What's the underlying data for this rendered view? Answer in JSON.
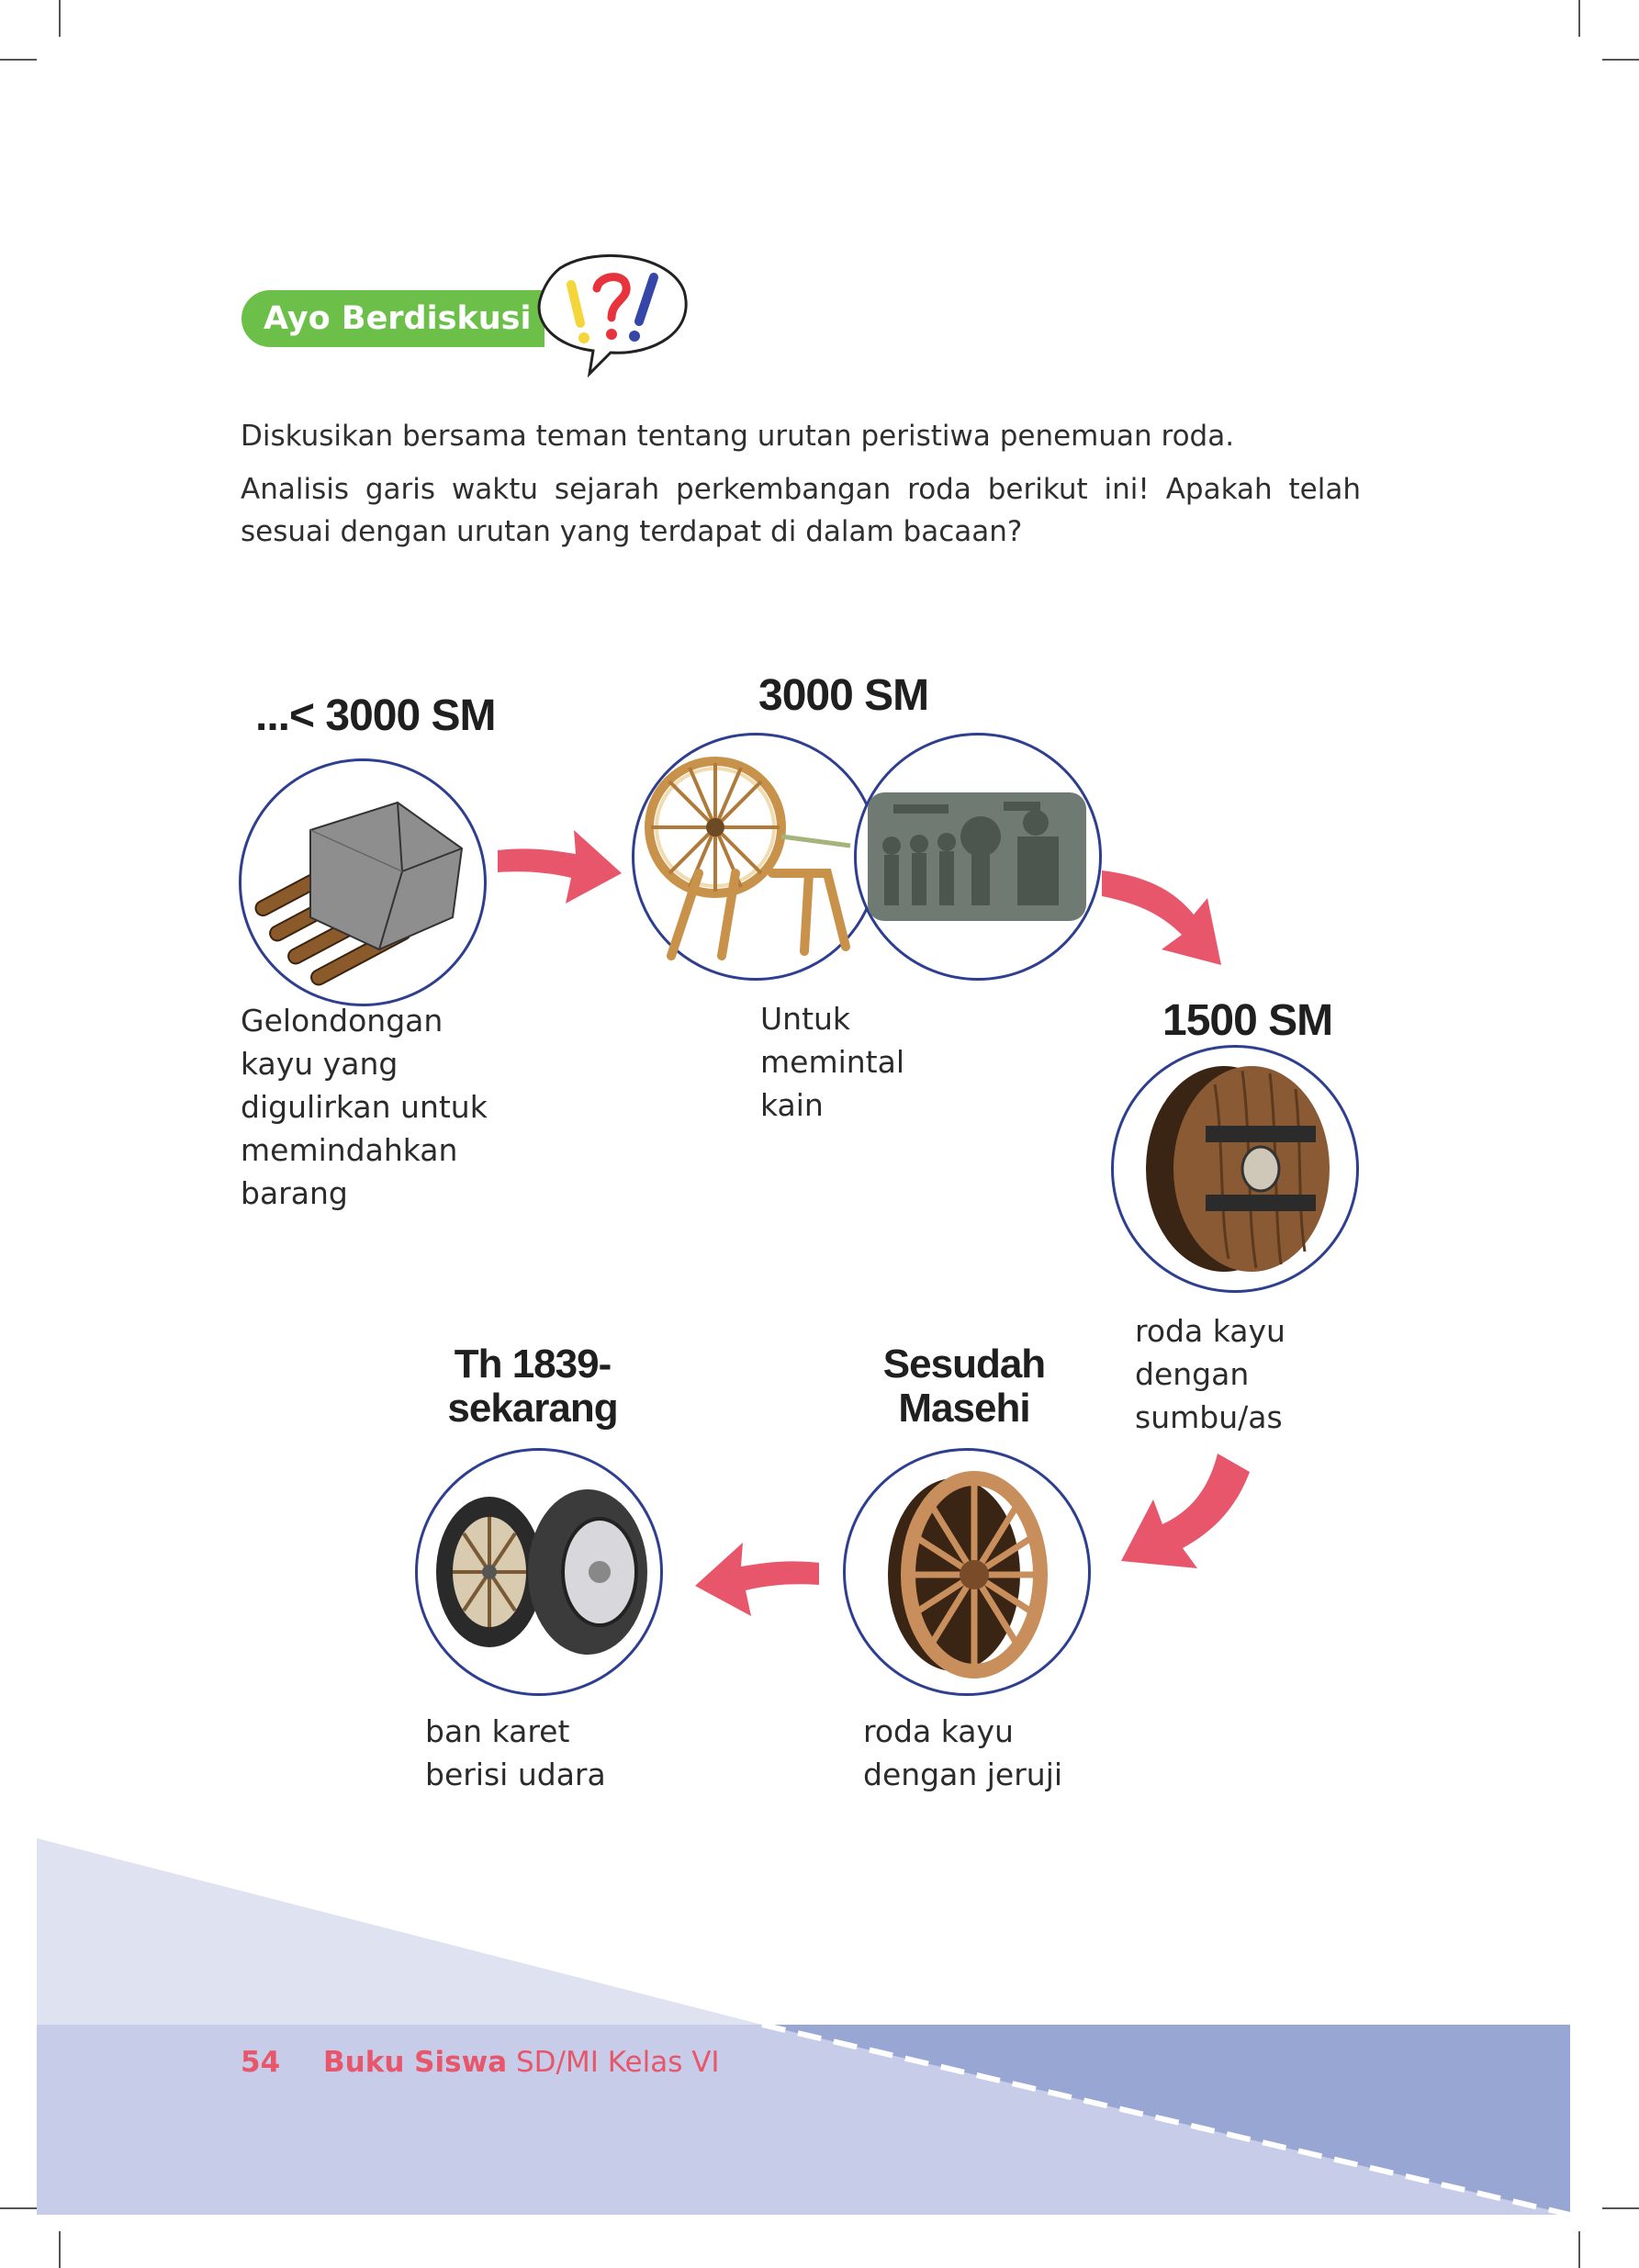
{
  "badge": {
    "label": "Ayo Berdiskusi"
  },
  "intro": {
    "line1": "Diskusikan bersama teman tentang urutan peristiwa  penemuan roda.",
    "line2": "Analisis garis waktu sejarah perkembangan roda berikut ini! Apakah telah sesuai dengan urutan yang terdapat di dalam bacaan?"
  },
  "timeline": [
    {
      "year": "...< 3000 SM",
      "caption": [
        "Gelondongan",
        "kayu yang",
        "digulirkan untuk",
        "memindahkan",
        "barang"
      ]
    },
    {
      "year": "3000 SM",
      "caption": [
        "Untuk",
        "memintal",
        "kain"
      ]
    },
    {
      "year": "1500 SM",
      "caption": [
        "roda kayu",
        "dengan",
        "sumbu/as"
      ]
    },
    {
      "year_lines": [
        "Sesudah",
        "Masehi"
      ],
      "caption": [
        "roda kayu",
        "dengan jeruji"
      ]
    },
    {
      "year_lines": [
        "Th 1839-",
        "sekarang"
      ],
      "caption": [
        "ban karet",
        "berisi udara"
      ]
    }
  ],
  "footer": {
    "page": "54",
    "title_bold": "Buku Siswa",
    "title_rest": " SD/MI Kelas VI"
  },
  "colors": {
    "accent_green": "#6cc04a",
    "arrow_pink": "#e8566b",
    "circle_border": "#2e3f8f",
    "footer_blue": "#98a6d4"
  },
  "icons": [
    "speech-bubble-exclamation-icon",
    "log-rollers-icon",
    "spinning-wheel-icon",
    "stone-relief-icon",
    "solid-wooden-wheel-icon",
    "spoked-wooden-wheel-icon",
    "rubber-tire-icon",
    "arrow-icon"
  ]
}
